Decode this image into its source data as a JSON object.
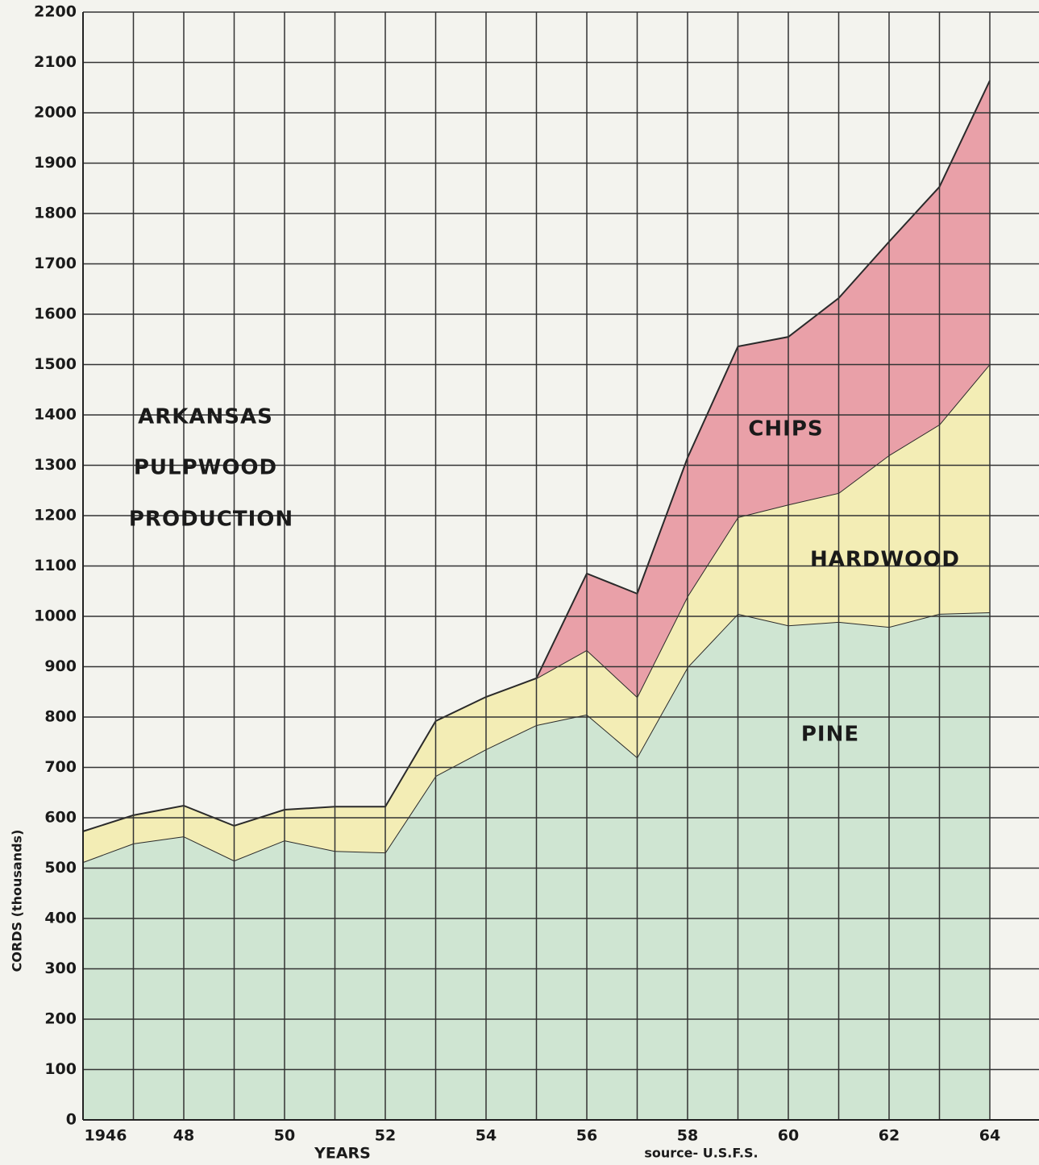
{
  "chart_data": {
    "type": "stacked-area",
    "title": [
      "ARKANSAS",
      "PULPWOOD",
      "PRODUCTION"
    ],
    "y_label": "CORDS   (thousands)",
    "x_label": "YEARS",
    "source": "source- U.S.F.S.",
    "categories": [
      "1946",
      null,
      "48",
      null,
      "50",
      null,
      "52",
      null,
      "54",
      null,
      "56",
      null,
      "58",
      null,
      "60",
      null,
      "62",
      null,
      "64"
    ],
    "series": [
      {
        "name": "PINE",
        "color": "#cfe5d2",
        "values": [
          512,
          549,
          563,
          515,
          555,
          534,
          531,
          683,
          736,
          784,
          805,
          720,
          899,
          1005,
          982,
          989,
          979,
          1005,
          1008
        ]
      },
      {
        "name": "HARDWOOD",
        "color": "#f3edb5",
        "values": [
          61,
          56,
          61,
          69,
          61,
          88,
          91,
          109,
          104,
          93,
          128,
          120,
          141,
          192,
          240,
          256,
          341,
          376,
          493
        ]
      },
      {
        "name": "CHIPS",
        "color": "#e9a0a8",
        "values": [
          null,
          null,
          null,
          null,
          null,
          null,
          null,
          null,
          null,
          0,
          152,
          205,
          275,
          339,
          333,
          387,
          424,
          472,
          563
        ]
      }
    ],
    "ylim": [
      0,
      2200
    ],
    "yticks": [
      0,
      100,
      200,
      300,
      400,
      500,
      600,
      700,
      800,
      900,
      1000,
      1100,
      1200,
      1300,
      1400,
      1500,
      1600,
      1700,
      1800,
      1900,
      2000,
      2100,
      2200
    ],
    "grid": true
  }
}
